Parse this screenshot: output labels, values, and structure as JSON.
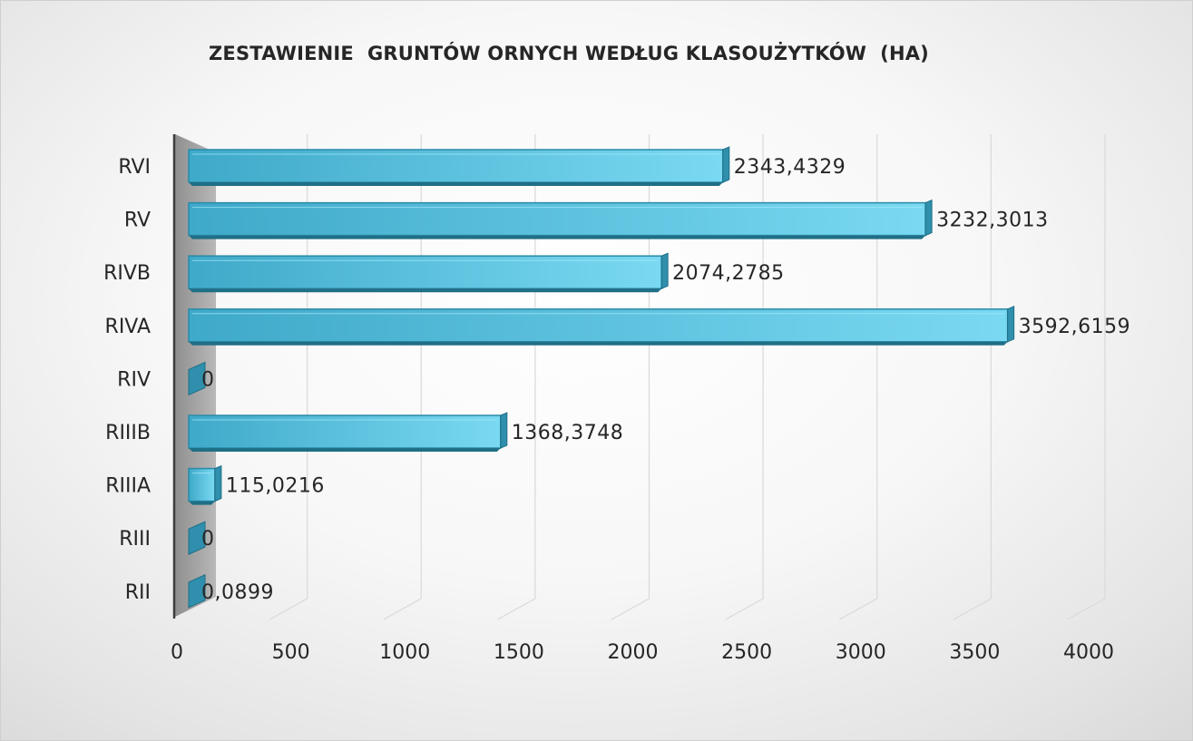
{
  "chart_data": {
    "type": "bar",
    "orientation": "horizontal",
    "title": "ZESTAWIENIE  GRUNTÓW ORNYCH WEDŁUG KLASOUŻYTKÓW  (HA)",
    "categories": [
      "RII",
      "RIII",
      "RIIIA",
      "RIIIB",
      "RIV",
      "RIVA",
      "RIVB",
      "RV",
      "RVI"
    ],
    "values": [
      0.0899,
      0,
      115.0216,
      1368.3748,
      0,
      3592.6159,
      2074.2785,
      3232.3013,
      2343.4329
    ],
    "data_labels": [
      "0,0899",
      "0",
      "115,0216",
      "1368,3748",
      "0",
      "3592,6159",
      "2074,2785",
      "3232,3013",
      "2343,4329"
    ],
    "xlim": [
      0,
      4000
    ],
    "x_ticks": [
      0,
      500,
      1000,
      1500,
      2000,
      2500,
      3000,
      3500,
      4000
    ],
    "grid": true,
    "legend": "none",
    "style": "3d",
    "colors": {
      "bar_front": "#4bb8d9",
      "bar_front_light": "#7fdaf3",
      "bar_side": "#2f8fac",
      "bar_top": "#3a9fbe",
      "wall": "#a0a0a0",
      "grid": "#d9d9d9"
    }
  }
}
